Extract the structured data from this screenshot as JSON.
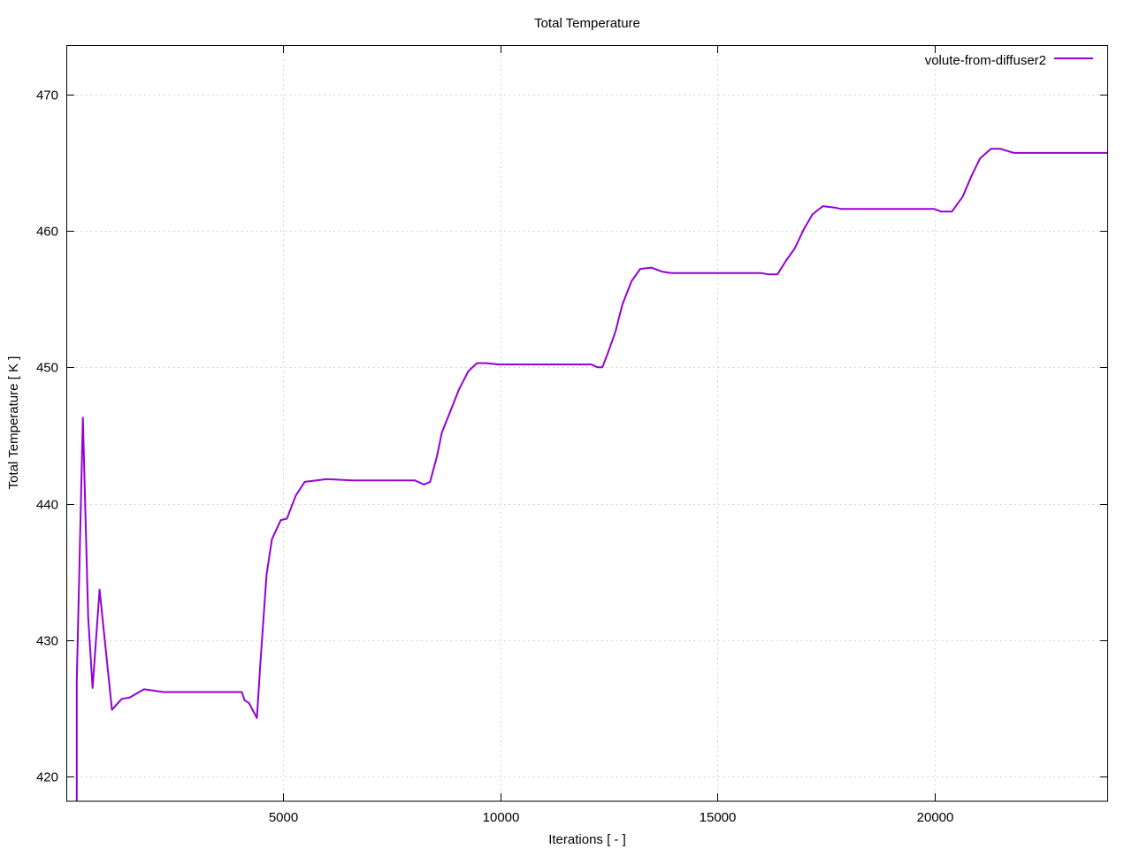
{
  "chart_data": {
    "type": "line",
    "title": "Total Temperature",
    "xlabel": "Iterations [ - ]",
    "ylabel": "Total Temperature [ K ]",
    "xlim": [
      0,
      24000
    ],
    "ylim": [
      418.2,
      473.6
    ],
    "xticks": [
      5000,
      10000,
      15000,
      20000
    ],
    "yticks": [
      420,
      430,
      440,
      450,
      460,
      470
    ],
    "grid": true,
    "legend_position": "top-right",
    "series": [
      {
        "name": "volute-from-diffuser2",
        "color": "#9400d3",
        "x": [
          240,
          240,
          382,
          503,
          605,
          767,
          1052,
          1276,
          1459,
          1789,
          2233,
          4045,
          4106,
          4208,
          4390,
          4470,
          4613,
          4737,
          4940,
          5082,
          5286,
          5490,
          5999,
          6610,
          8034,
          8238,
          8380,
          8540,
          8650,
          8850,
          9050,
          9260,
          9460,
          9660,
          9970,
          12100,
          12230,
          12350,
          12470,
          12650,
          12810,
          13020,
          13220,
          13470,
          13730,
          13940,
          16010,
          16170,
          16380,
          16580,
          16780,
          16990,
          17190,
          17430,
          17700,
          17840,
          19990,
          20160,
          20400,
          20650,
          20850,
          21050,
          21300,
          21520,
          21830,
          24000
        ],
        "y": [
          417,
          427,
          446.3,
          431.7,
          426.5,
          433.7,
          424.9,
          425.7,
          425.8,
          426.4,
          426.2,
          426.2,
          425.6,
          425.4,
          424.3,
          428.3,
          434.8,
          437.4,
          438.8,
          438.9,
          440.6,
          441.6,
          441.8,
          441.7,
          441.7,
          441.4,
          441.6,
          443.5,
          445.2,
          446.8,
          448.4,
          449.7,
          450.3,
          450.3,
          450.2,
          450.2,
          450.0,
          450.0,
          451.0,
          452.6,
          454.6,
          456.3,
          457.2,
          457.3,
          457.0,
          456.9,
          456.9,
          456.8,
          456.8,
          457.8,
          458.7,
          460.1,
          461.2,
          461.8,
          461.7,
          461.6,
          461.6,
          461.4,
          461.4,
          462.5,
          464.0,
          465.3,
          466.0,
          466.0,
          465.7,
          465.7
        ]
      }
    ]
  }
}
